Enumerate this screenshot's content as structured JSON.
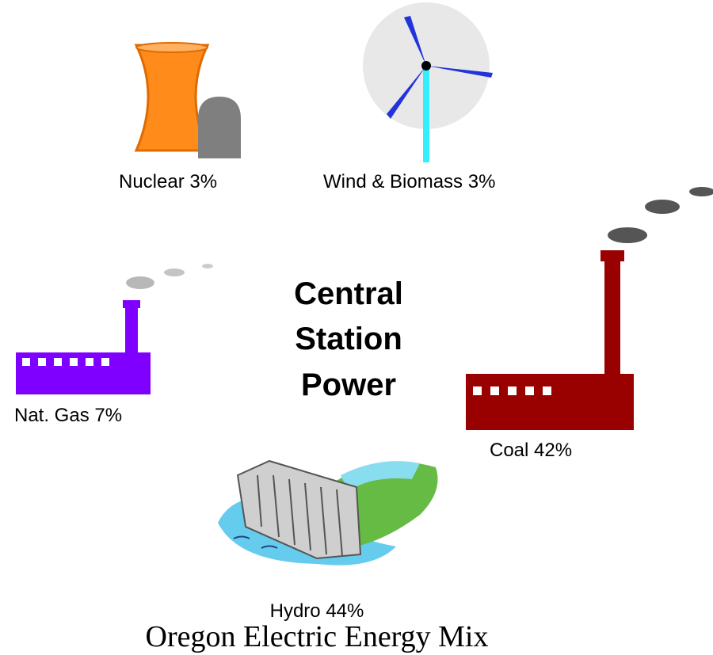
{
  "title": {
    "lines": [
      "Central",
      "Station",
      "Power"
    ]
  },
  "nodes": [
    {
      "label": "Nuclear 3%"
    },
    {
      "label": "Wind & Biomass 3%"
    },
    {
      "label": "Nat. Gas 7%"
    },
    {
      "label": "Coal 42%"
    },
    {
      "label": "Hydro 44%"
    }
  ],
  "caption": "Oregon Electric Energy Mix"
}
